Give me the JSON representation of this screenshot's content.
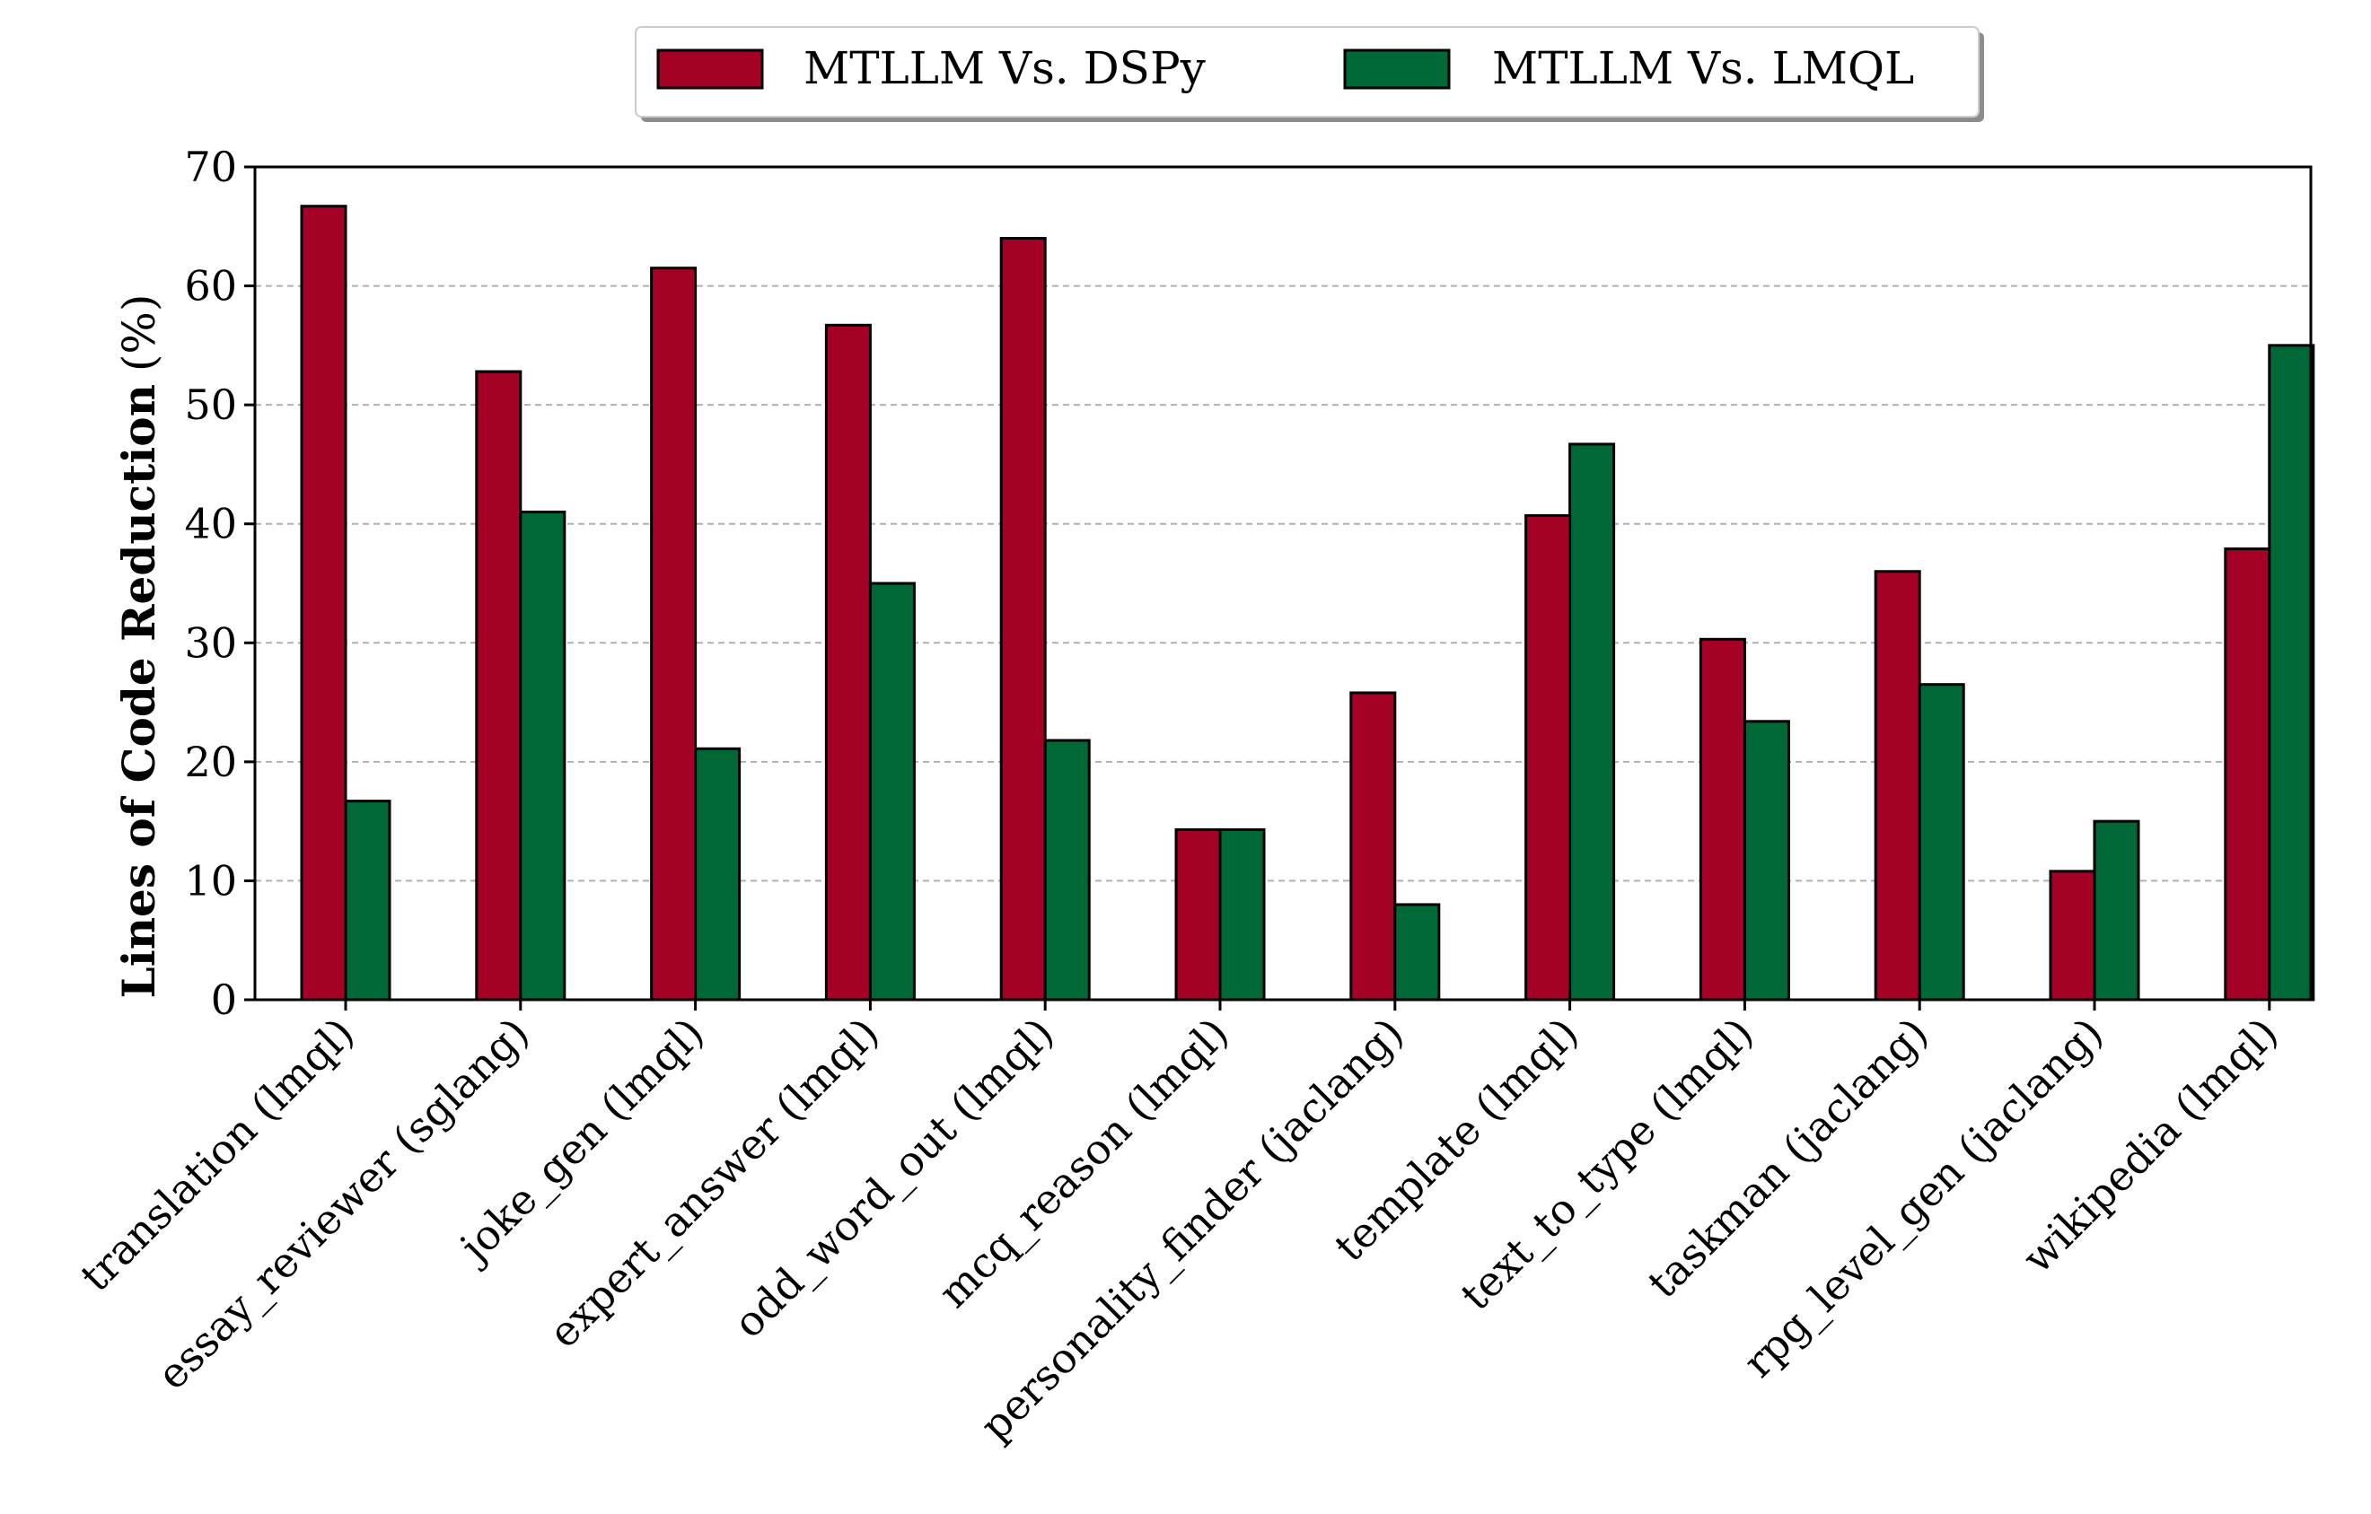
{
  "chart_data": {
    "type": "bar",
    "title": "",
    "xlabel": "",
    "ylabel": "Lines of Code Reduction",
    "ylabel_unit": "(%)",
    "ylim": [
      0,
      70
    ],
    "yticks": [
      0,
      10,
      20,
      30,
      40,
      50,
      60,
      70
    ],
    "grid": "y-dashed",
    "legend_position": "top-center-outside",
    "categories": [
      "translation (lmql)",
      "essay_reviewer (sglang)",
      "joke_gen (lmql)",
      "expert_answer (lmql)",
      "odd_word_out (lmql)",
      "mcq_reason (lmql)",
      "personality_finder (jaclang)",
      "template (lmql)",
      "text_to_type (lmql)",
      "taskman (jaclang)",
      "rpg_level_gen (jaclang)",
      "wikipedia (lmql)"
    ],
    "series": [
      {
        "name": "MTLLM Vs. DSPy",
        "color": "#a50026",
        "values": [
          66.7,
          52.8,
          61.5,
          56.7,
          64.0,
          14.3,
          25.8,
          40.7,
          30.3,
          36.0,
          10.8,
          37.9
        ]
      },
      {
        "name": "MTLLM Vs. LMQL",
        "color": "#006837",
        "values": [
          16.7,
          41.0,
          21.1,
          35.0,
          21.8,
          14.3,
          8.0,
          46.7,
          23.4,
          26.5,
          15.0,
          55.0
        ]
      }
    ]
  }
}
